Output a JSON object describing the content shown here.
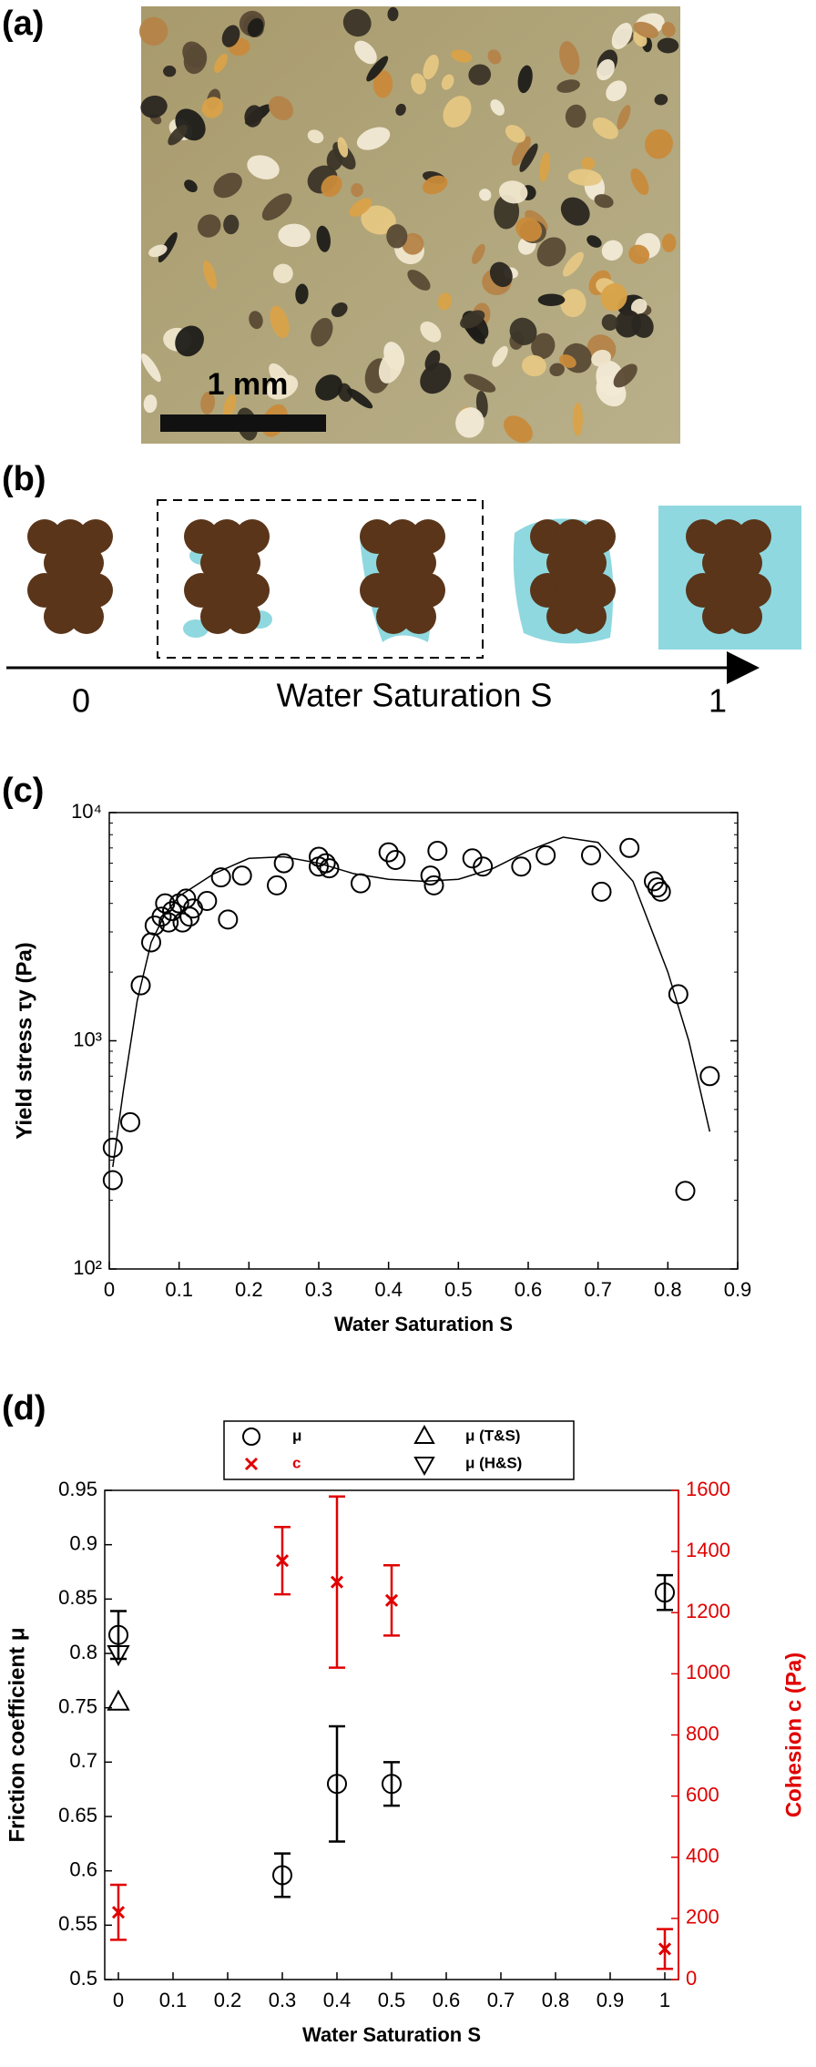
{
  "panel_labels": [
    "(a)",
    "(b)",
    "(c)",
    "(d)"
  ],
  "panel_a": {
    "scale_bar": "1 mm"
  },
  "panel_b": {
    "axis_label": "Water Saturation S",
    "start": "0",
    "end": "1"
  },
  "chart_data": [
    {
      "type": "scatter",
      "xlabel": "Water Saturation S",
      "ylabel": "Yield stress τy (Pa)",
      "xlim": [
        0,
        0.9
      ],
      "xticks": [
        0,
        0.1,
        0.2,
        0.3,
        0.4,
        0.5,
        0.6,
        0.7,
        0.8,
        0.9
      ],
      "ylim": [
        100,
        10000
      ],
      "yscale": "log",
      "yticks": [
        {
          "value": 100,
          "label": "10²"
        },
        {
          "value": 1000,
          "label": "10³"
        },
        {
          "value": 10000,
          "label": "10⁴"
        }
      ],
      "series": [
        {
          "marker": "circle",
          "color": "#000000",
          "x": [
            0.005,
            0.005,
            0.03,
            0.045,
            0.06,
            0.065,
            0.075,
            0.08,
            0.085,
            0.09,
            0.1,
            0.105,
            0.11,
            0.115,
            0.12,
            0.14,
            0.16,
            0.17,
            0.19,
            0.24,
            0.25,
            0.3,
            0.3,
            0.31,
            0.315,
            0.36,
            0.4,
            0.41,
            0.46,
            0.465,
            0.47,
            0.52,
            0.535,
            0.59,
            0.625,
            0.69,
            0.705,
            0.745,
            0.78,
            0.785,
            0.79,
            0.815,
            0.825,
            0.86
          ],
          "values": [
            340,
            245,
            440,
            1750,
            2700,
            3200,
            3500,
            4000,
            3300,
            3700,
            4000,
            3300,
            4200,
            3500,
            3800,
            4100,
            5200,
            3400,
            5300,
            4800,
            6000,
            5800,
            6400,
            6000,
            5700,
            4900,
            6700,
            6200,
            5300,
            4800,
            6800,
            6300,
            5800,
            5800,
            6500,
            6500,
            4500,
            7000,
            5000,
            4700,
            4500,
            1600,
            220,
            700
          ]
        },
        {
          "marker": "line",
          "color": "#000000",
          "x": [
            0.005,
            0.02,
            0.04,
            0.06,
            0.08,
            0.1,
            0.15,
            0.2,
            0.25,
            0.3,
            0.35,
            0.4,
            0.45,
            0.5,
            0.55,
            0.6,
            0.65,
            0.7,
            0.75,
            0.8,
            0.83,
            0.86
          ],
          "values": [
            280,
            600,
            1500,
            2700,
            3600,
            4300,
            5400,
            6300,
            6400,
            6000,
            5400,
            5100,
            5000,
            5100,
            5700,
            6800,
            7800,
            7400,
            5000,
            2000,
            1000,
            400
          ]
        }
      ]
    },
    {
      "type": "errorbar",
      "xlabel": "Water Saturation S",
      "ylabel": "Friction coefficient μ",
      "y2label": "Cohesion c (Pa)",
      "y2color": "#e00000",
      "legend": "top",
      "xlim": [
        -0.025,
        1.025
      ],
      "xticks": [
        0,
        0.1,
        0.2,
        0.3,
        0.4,
        0.5,
        0.6,
        0.7,
        0.8,
        0.9,
        1
      ],
      "ylim": [
        0.5,
        0.95
      ],
      "yticks": [
        0.5,
        0.55,
        0.6,
        0.65,
        0.7,
        0.75,
        0.8,
        0.85,
        0.9,
        0.95
      ],
      "y2lim": [
        0,
        1600
      ],
      "y2ticks": [
        0,
        200,
        400,
        600,
        800,
        1000,
        1200,
        1400,
        1600
      ],
      "series": [
        {
          "name": "μ",
          "marker": "circle",
          "color": "#000000",
          "x": [
            0,
            0.3,
            0.4,
            0.5,
            1
          ],
          "values": [
            0.817,
            0.596,
            0.68,
            0.68,
            0.856
          ],
          "errors": [
            0.022,
            0.02,
            0.053,
            0.02,
            0.016
          ]
        },
        {
          "name": "c",
          "marker": "x",
          "color": "#e00000",
          "axis": "y2",
          "x": [
            0,
            0.3,
            0.4,
            0.5,
            1
          ],
          "values": [
            220,
            1370,
            1300,
            1240,
            100
          ],
          "errors": [
            90,
            110,
            280,
            115,
            65
          ]
        },
        {
          "name": "μ (T&S)",
          "marker": "triangle-up",
          "color": "#000000",
          "x": [
            0
          ],
          "values": [
            0.755
          ]
        },
        {
          "name": "μ (H&S)",
          "marker": "triangle-down",
          "color": "#000000",
          "x": [
            0
          ],
          "values": [
            0.8
          ]
        }
      ]
    }
  ]
}
